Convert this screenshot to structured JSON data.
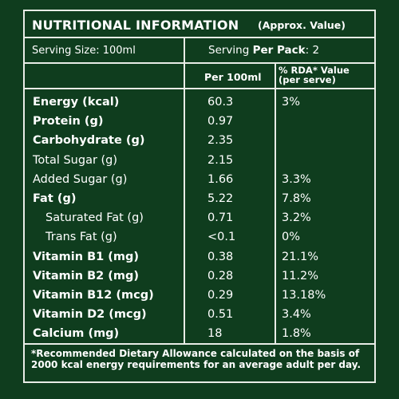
{
  "title": "NUTRITIONAL INFORMATION",
  "title_note": "(Approx. Value)",
  "serving_size": "Serving Size: 100ml",
  "serving_per_pack_prefix": "Serving ",
  "serving_per_pack_bold": "Per Pack",
  "serving_per_pack_value": ": 2",
  "columns": {
    "per100": "Per 100ml",
    "rda_line1": "% RDA* Value",
    "rda_line2": "(per serve)"
  },
  "rows": [
    {
      "name": "Energy (kcal)",
      "per100": "60.3",
      "rda": "3%",
      "bold": true,
      "sub": false
    },
    {
      "name": "Protein (g)",
      "per100": "0.97",
      "rda": "",
      "bold": true,
      "sub": false
    },
    {
      "name": "Carbohydrate (g)",
      "per100": "2.35",
      "rda": "",
      "bold": true,
      "sub": false
    },
    {
      "name": "Total Sugar (g)",
      "per100": "2.15",
      "rda": "",
      "bold": false,
      "sub": false
    },
    {
      "name": "Added Sugar (g)",
      "per100": "1.66",
      "rda": "3.3%",
      "bold": false,
      "sub": false
    },
    {
      "name": "Fat (g)",
      "per100": "5.22",
      "rda": "7.8%",
      "bold": true,
      "sub": false
    },
    {
      "name": "Saturated Fat (g)",
      "per100": "0.71",
      "rda": "3.2%",
      "bold": false,
      "sub": true
    },
    {
      "name": "Trans Fat (g)",
      "per100": "<0.1",
      "rda": "0%",
      "bold": false,
      "sub": true
    },
    {
      "name": "Vitamin B1 (mg)",
      "per100": "0.38",
      "rda": "21.1%",
      "bold": true,
      "sub": false
    },
    {
      "name": "Vitamin B2 (mg)",
      "per100": "0.28",
      "rda": "11.2%",
      "bold": true,
      "sub": false
    },
    {
      "name": "Vitamin B12 (mcg)",
      "per100": "0.29",
      "rda": "13.18%",
      "bold": true,
      "sub": false
    },
    {
      "name": "Vitamin D2 (mcg)",
      "per100": "0.51",
      "rda": "3.4%",
      "bold": true,
      "sub": false
    },
    {
      "name": "Calcium (mg)",
      "per100": "18",
      "rda": "1.8%",
      "bold": true,
      "sub": false
    }
  ],
  "footer": "*Recommended Dietary Allowance calculated on the basis of 2000 kcal energy requirements for an average adult per day.",
  "colors": {
    "background": "#0f3d1e",
    "lines": "#e8ece6",
    "text": "#ffffff"
  }
}
